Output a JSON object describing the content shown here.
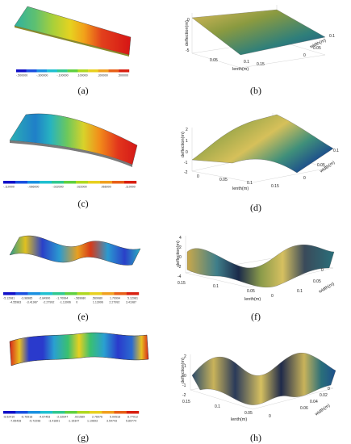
{
  "panels": [
    {
      "id": "a",
      "caption": "(a)",
      "type": "fem-contour",
      "colorbar_ticks": [
        "-.500000",
        "-.300000",
        "-.100000",
        ".100000",
        ".300000",
        ".500000"
      ],
      "colorbar_ticks_lower": []
    },
    {
      "id": "b",
      "caption": "(b)",
      "type": "surface-3d",
      "zlabel": "deflection(m)",
      "xlabel": "lenth(m)",
      "ylabel": "width(m)",
      "z_ticks": [
        "0",
        "-5"
      ],
      "x_ticks": [
        "0.05",
        "0.1",
        "0.15"
      ],
      "y_ticks": [
        "0.1",
        "0.05",
        "0"
      ]
    },
    {
      "id": "c",
      "caption": "(c)",
      "type": "fem-contour",
      "colorbar_ticks": [
        "-.110000",
        "-.066000",
        "-.022000",
        ".022000",
        ".066000",
        ".110000"
      ],
      "colorbar_ticks_lower": []
    },
    {
      "id": "d",
      "caption": "(d)",
      "type": "surface-3d",
      "zlabel": "deflection(m)",
      "xlabel": "lenth(m)",
      "ylabel": "width(m)",
      "z_ticks": [
        "2",
        "1",
        "0",
        "-1",
        "-2"
      ],
      "x_ticks": [
        "0",
        "0.05",
        "0.1",
        "0.15"
      ],
      "y_ticks": [
        "0.1",
        "0.05",
        "0"
      ]
    },
    {
      "id": "e",
      "caption": "(e)",
      "type": "fem-contour",
      "colorbar_ticks": [
        "-5.12981",
        "-3.98985",
        "-2.84990",
        "-1.70994",
        "-.569980",
        ".569980",
        "1.70994",
        "5.12981"
      ],
      "colorbar_ticks_lower": [
        "-4.55983",
        "-3.41987",
        "-2.27992",
        "-1.13996",
        "0",
        "1.13996",
        "2.27992",
        "3.41987"
      ]
    },
    {
      "id": "f",
      "caption": "(f)",
      "type": "surface-3d",
      "zlabel": "deflection(m)",
      "xlabel": "lenth(m)",
      "ylabel": "width(m)",
      "z_ticks": [
        "4",
        "2",
        "0",
        "-2",
        "-4"
      ],
      "x_ticks": [
        "0.15",
        "0.1",
        "0.05",
        "0"
      ],
      "y_ticks": [
        "0",
        "0.05",
        "0.1"
      ]
    },
    {
      "id": "g",
      "caption": "(g)",
      "type": "fem-contour",
      "colorbar_ticks": [
        "-8.52410",
        "-6.76918",
        "-4.67453",
        "-2.32647",
        ".021589",
        "2.76976",
        "5.00518",
        "8.77012"
      ],
      "colorbar_ticks_lower": [
        "-7.65428",
        "-5.72298",
        "-3.41891",
        "-1.15347",
        "1.19693",
        "3.54743",
        "5.89774"
      ]
    },
    {
      "id": "h",
      "caption": "(h)",
      "type": "surface-3d",
      "zlabel": "deflection(m)",
      "xlabel": "lenth(m)",
      "ylabel": "width(m)",
      "z_ticks": [
        "2",
        "1",
        "0",
        "-1",
        "-2"
      ],
      "x_ticks": [
        "0.15",
        "0.1",
        "0.05",
        "0"
      ],
      "y_ticks": [
        "0",
        "0.02",
        "0.04",
        "0.06"
      ]
    }
  ]
}
